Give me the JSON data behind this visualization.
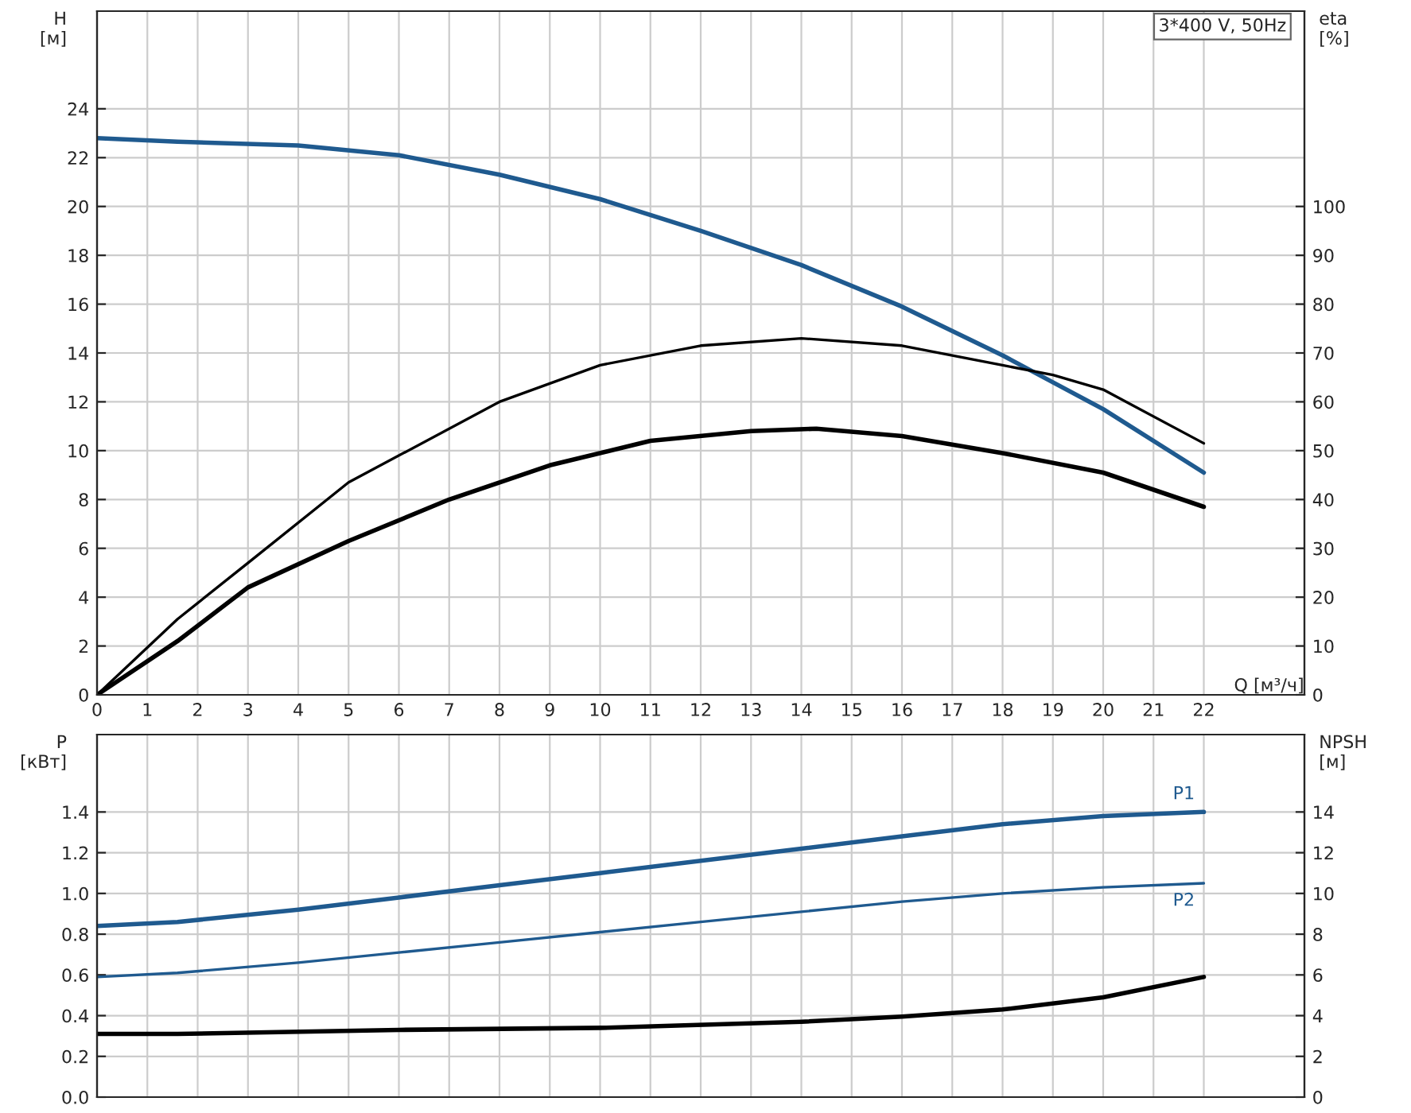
{
  "chart_data": [
    {
      "type": "line",
      "xlabel": "Q [м³/ч]",
      "ylabel": "H\n[м]",
      "y2label": "eta\n[%]",
      "annotations": [
        "3*400 V, 50Hz"
      ],
      "xlim": [
        0,
        24
      ],
      "xticks": [
        0,
        1,
        2,
        3,
        4,
        5,
        6,
        7,
        8,
        9,
        10,
        11,
        12,
        13,
        14,
        15,
        16,
        17,
        18,
        19,
        20,
        21,
        22
      ],
      "ylim": [
        0,
        28
      ],
      "yticks": [
        0,
        2,
        4,
        6,
        8,
        10,
        12,
        14,
        16,
        18,
        20,
        22,
        24
      ],
      "y2lim": [
        0,
        140
      ],
      "y2ticks": [
        0,
        10,
        20,
        30,
        40,
        50,
        60,
        70,
        80,
        90,
        100
      ],
      "grid": true,
      "legend": false,
      "marker": "none",
      "line_style": "solid",
      "series": [
        {
          "color": "#1f5a8f",
          "x": [
            0,
            1.6,
            4,
            6,
            8,
            10,
            12,
            14,
            16,
            18,
            19,
            20,
            22
          ],
          "values": [
            22.8,
            22.65,
            22.5,
            22.1,
            21.3,
            20.3,
            19.0,
            17.6,
            15.9,
            13.9,
            12.8,
            11.7,
            9.1
          ]
        },
        {
          "color": "#000000",
          "axis": "y2",
          "x": [
            0,
            1.6,
            3,
            5,
            8,
            10,
            12,
            14,
            16,
            18,
            19,
            20,
            22
          ],
          "values": [
            0,
            15.5,
            27,
            43.5,
            60,
            67.5,
            71.5,
            73,
            71.5,
            67.5,
            65.5,
            62.5,
            51.5
          ]
        },
        {
          "color": "#000000",
          "axis": "y2",
          "x": [
            0,
            1.6,
            3,
            5,
            7,
            9,
            11,
            13,
            14.3,
            16,
            18,
            20,
            22
          ],
          "values": [
            0,
            11,
            22,
            31.5,
            40,
            47,
            52,
            54,
            54.5,
            53,
            49.5,
            45.5,
            38.5
          ]
        }
      ]
    },
    {
      "type": "line",
      "ylabel": "P\n[кВт]",
      "y2label": "NPSH\n[м]",
      "xlim": [
        0,
        24
      ],
      "xticks": [
        0,
        1,
        2,
        3,
        4,
        5,
        6,
        7,
        8,
        9,
        10,
        11,
        12,
        13,
        14,
        15,
        16,
        17,
        18,
        19,
        20,
        21,
        22
      ],
      "ylim": [
        0,
        1.78
      ],
      "yticks": [
        {
          "value": 0,
          "label": "0.0"
        },
        0.2,
        0.4,
        0.6,
        0.8,
        {
          "value": 1,
          "label": "1.0"
        },
        1.2,
        1.4
      ],
      "y2lim": [
        0,
        17.8
      ],
      "y2ticks": [
        0,
        2,
        4,
        6,
        8,
        10,
        12,
        14
      ],
      "tick_labels": "y",
      "grid": true,
      "legend": false,
      "marker": "none",
      "line_style": "solid",
      "series": [
        {
          "name": "P1",
          "color": "#1f5a8f",
          "x": [
            0,
            1.6,
            4,
            6,
            8,
            10,
            12,
            14,
            16,
            18,
            20,
            22
          ],
          "values": [
            0.84,
            0.86,
            0.92,
            0.98,
            1.04,
            1.1,
            1.16,
            1.22,
            1.28,
            1.34,
            1.38,
            1.4
          ]
        },
        {
          "name": "P2",
          "color": "#1f5a8f",
          "x": [
            0,
            1.6,
            4,
            6,
            8,
            10,
            12,
            14,
            16,
            18,
            20,
            22
          ],
          "values": [
            0.59,
            0.61,
            0.66,
            0.71,
            0.76,
            0.81,
            0.86,
            0.91,
            0.96,
            1.0,
            1.03,
            1.05
          ]
        },
        {
          "color": "#000000",
          "axis": "y2",
          "x": [
            0,
            1.6,
            6,
            10,
            14,
            16,
            18,
            20,
            22
          ],
          "values": [
            3.1,
            3.1,
            3.3,
            3.4,
            3.7,
            3.95,
            4.3,
            4.9,
            5.9
          ]
        }
      ]
    }
  ]
}
